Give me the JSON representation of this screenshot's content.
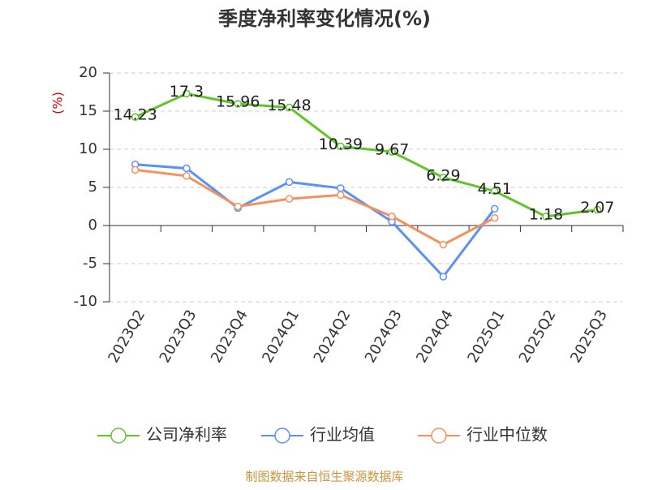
{
  "chart_data": {
    "type": "line",
    "title": "季度净利率变化情况(%)",
    "y_label": "(%)",
    "categories": [
      "2023Q2",
      "2023Q3",
      "2023Q4",
      "2024Q1",
      "2024Q2",
      "2024Q3",
      "2024Q4",
      "2025Q1",
      "2025Q2",
      "2025Q3"
    ],
    "series": [
      {
        "name": "公司净利率",
        "color": "#5fc52a",
        "values": [
          14.23,
          17.3,
          15.96,
          15.48,
          10.39,
          9.67,
          6.29,
          4.51,
          1.18,
          2.07
        ],
        "show_labels": true
      },
      {
        "name": "行业均值",
        "color": "#5b8ff9",
        "values": [
          8.0,
          7.5,
          2.3,
          5.7,
          4.9,
          0.5,
          -6.7,
          2.2,
          null,
          null
        ]
      },
      {
        "name": "行业中位数",
        "color": "#f4925f",
        "values": [
          7.3,
          6.5,
          2.5,
          3.5,
          4.0,
          1.2,
          -2.5,
          1.0,
          null,
          null
        ]
      }
    ],
    "ylim": [
      -10,
      20
    ],
    "yticks": [
      20,
      15,
      10,
      5,
      0,
      -5,
      -10
    ],
    "grid": true,
    "source": "制图数据来自恒生聚源数据库"
  }
}
